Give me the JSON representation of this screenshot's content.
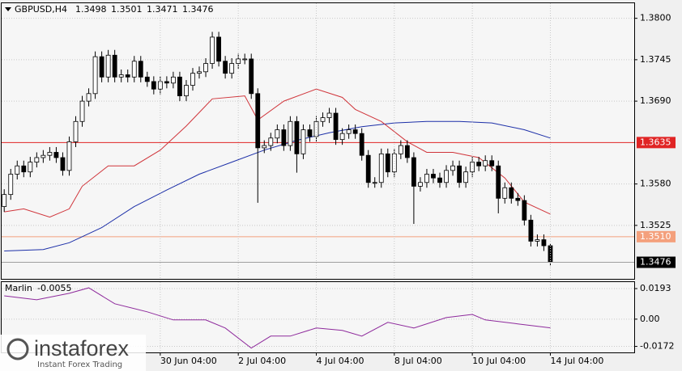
{
  "chart_data": [
    {
      "type": "candlestick",
      "title": "GBPUSD,H4",
      "x": [
        0,
        1,
        2,
        3,
        4,
        5,
        6,
        7,
        8,
        9,
        10,
        11,
        12,
        13,
        14,
        15,
        16,
        17,
        18,
        19,
        20,
        21,
        22,
        23,
        24,
        25,
        26,
        27,
        28,
        29,
        30,
        31,
        32,
        33,
        34,
        35,
        36,
        37,
        38,
        39,
        40,
        41,
        42,
        43,
        44,
        45,
        46,
        47,
        48,
        49,
        50,
        51,
        52,
        53,
        54,
        55,
        56,
        57,
        58,
        59,
        60,
        61,
        62,
        63,
        64,
        65,
        66,
        67,
        68,
        69,
        70,
        71,
        72,
        73,
        74,
        75,
        76,
        77,
        78,
        79,
        80,
        81,
        82,
        83,
        84
      ],
      "open": [
        1.355,
        1.3566,
        1.3593,
        1.3604,
        1.3596,
        1.3609,
        1.3615,
        1.3618,
        1.3622,
        1.3615,
        1.3598,
        1.3636,
        1.3663,
        1.369,
        1.37,
        1.3749,
        1.3722,
        1.3751,
        1.3722,
        1.3725,
        1.3722,
        1.3743,
        1.3722,
        1.3716,
        1.3706,
        1.3716,
        1.3714,
        1.3722,
        1.3697,
        1.3711,
        1.3727,
        1.3729,
        1.374,
        1.3775,
        1.3743,
        1.3727,
        1.374,
        1.3746,
        1.3746,
        1.37,
        1.3628,
        1.3631,
        1.3641,
        1.3652,
        1.3631,
        1.3663,
        1.362,
        1.3652,
        1.3643,
        1.3663,
        1.3668,
        1.3674,
        1.3639,
        1.3647,
        1.3652,
        1.3647,
        1.3618,
        1.3582,
        1.3582,
        1.362,
        1.3596,
        1.362,
        1.3631,
        1.3615,
        1.3577,
        1.3582,
        1.3593,
        1.3588,
        1.3582,
        1.3598,
        1.3604,
        1.3582,
        1.3596,
        1.3609,
        1.3604,
        1.3611,
        1.3604,
        1.3561,
        1.3575,
        1.3561,
        1.3558,
        1.3532,
        1.3504,
        1.3506,
        1.3498
      ],
      "high": [
        1.3573,
        1.36,
        1.3611,
        1.3611,
        1.3616,
        1.3622,
        1.3625,
        1.3629,
        1.3629,
        1.3622,
        1.3643,
        1.367,
        1.3697,
        1.3707,
        1.3756,
        1.3756,
        1.3758,
        1.3758,
        1.3732,
        1.3732,
        1.375,
        1.375,
        1.3729,
        1.3723,
        1.3723,
        1.3723,
        1.3729,
        1.3729,
        1.3718,
        1.3734,
        1.3736,
        1.3747,
        1.3782,
        1.3782,
        1.375,
        1.3747,
        1.3753,
        1.3753,
        1.3753,
        1.3707,
        1.3638,
        1.3648,
        1.3659,
        1.3659,
        1.367,
        1.367,
        1.3659,
        1.3659,
        1.367,
        1.3675,
        1.3681,
        1.3681,
        1.3654,
        1.3659,
        1.3659,
        1.3654,
        1.3625,
        1.3589,
        1.3627,
        1.3627,
        1.3627,
        1.3638,
        1.3638,
        1.3622,
        1.3589,
        1.36,
        1.36,
        1.3595,
        1.3605,
        1.3611,
        1.3611,
        1.3603,
        1.3616,
        1.3616,
        1.3618,
        1.3618,
        1.3611,
        1.3582,
        1.3582,
        1.3568,
        1.3565,
        1.3539,
        1.3513,
        1.3513,
        1.3501
      ],
      "low": [
        1.3543,
        1.3559,
        1.3586,
        1.3589,
        1.3589,
        1.3602,
        1.3608,
        1.3611,
        1.3608,
        1.3591,
        1.3591,
        1.3629,
        1.3656,
        1.3683,
        1.3693,
        1.3715,
        1.3715,
        1.3715,
        1.3715,
        1.3715,
        1.3715,
        1.3715,
        1.3709,
        1.3699,
        1.3699,
        1.3707,
        1.3707,
        1.369,
        1.369,
        1.3704,
        1.372,
        1.3722,
        1.3733,
        1.3736,
        1.372,
        1.372,
        1.3733,
        1.3739,
        1.3693,
        1.3555,
        1.3621,
        1.3624,
        1.3634,
        1.3624,
        1.3624,
        1.3595,
        1.3613,
        1.3636,
        1.3636,
        1.3656,
        1.3661,
        1.3632,
        1.3632,
        1.364,
        1.364,
        1.3611,
        1.3575,
        1.3575,
        1.3575,
        1.3589,
        1.3589,
        1.3613,
        1.3608,
        1.3527,
        1.357,
        1.3575,
        1.3581,
        1.3575,
        1.3575,
        1.3591,
        1.3575,
        1.3575,
        1.3589,
        1.3597,
        1.3597,
        1.3597,
        1.3541,
        1.3554,
        1.3554,
        1.3551,
        1.3525,
        1.3497,
        1.3497,
        1.3491,
        1.3471
      ],
      "close": [
        1.3566,
        1.3593,
        1.3604,
        1.3596,
        1.3609,
        1.3615,
        1.3618,
        1.3622,
        1.3615,
        1.3598,
        1.3636,
        1.3663,
        1.369,
        1.37,
        1.3749,
        1.3722,
        1.3751,
        1.3722,
        1.3725,
        1.3722,
        1.3743,
        1.3722,
        1.3716,
        1.3706,
        1.3716,
        1.3714,
        1.3722,
        1.3697,
        1.3711,
        1.3727,
        1.3729,
        1.374,
        1.3775,
        1.3743,
        1.3727,
        1.374,
        1.3746,
        1.3746,
        1.37,
        1.3628,
        1.3631,
        1.3641,
        1.3652,
        1.3631,
        1.3663,
        1.362,
        1.3652,
        1.3643,
        1.3663,
        1.3668,
        1.3674,
        1.3639,
        1.3647,
        1.3652,
        1.3647,
        1.3618,
        1.3582,
        1.3582,
        1.362,
        1.3596,
        1.362,
        1.3631,
        1.3615,
        1.3577,
        1.3582,
        1.3593,
        1.3588,
        1.3582,
        1.3598,
        1.3604,
        1.3582,
        1.3596,
        1.3609,
        1.3604,
        1.3611,
        1.3604,
        1.3561,
        1.3575,
        1.3561,
        1.3558,
        1.3532,
        1.3504,
        1.3506,
        1.3498,
        1.3476
      ],
      "series": [
        {
          "color": "#1c2fa8",
          "x": [
            0,
            6,
            10,
            15,
            20,
            25,
            30,
            35,
            40,
            45,
            50,
            55,
            60,
            65,
            70,
            75,
            80,
            84
          ],
          "values": [
            1.3491,
            1.3493,
            1.3502,
            1.3522,
            1.355,
            1.3572,
            1.3593,
            1.3609,
            1.3625,
            1.3638,
            1.3648,
            1.3656,
            1.3661,
            1.3663,
            1.3663,
            1.3661,
            1.3652,
            1.3641
          ]
        },
        {
          "color": "#d0343a",
          "x": [
            0,
            3,
            7,
            10,
            12,
            16,
            20,
            24,
            28,
            32,
            37,
            39,
            43,
            48,
            52,
            54,
            58,
            62,
            65,
            69,
            73,
            77,
            80,
            84
          ],
          "values": [
            1.3543,
            1.3547,
            1.3536,
            1.3547,
            1.3577,
            1.3604,
            1.3604,
            1.3625,
            1.3657,
            1.3693,
            1.3697,
            1.3665,
            1.369,
            1.3706,
            1.3695,
            1.3679,
            1.3663,
            1.3636,
            1.3622,
            1.3622,
            1.3615,
            1.3588,
            1.3556,
            1.354
          ]
        }
      ],
      "hlines": [
        {
          "value": 1.3635,
          "color": "#e02424"
        },
        {
          "value": 1.351,
          "label": "1.3510",
          "color": "#f4a07c"
        }
      ],
      "xlim": [
        -0.4,
        96.9
      ],
      "ylim": [
        1.3454,
        1.382
      ],
      "yticks": [
        {
          "value": 1.38,
          "label": "1.3800"
        },
        1.3745,
        {
          "value": 1.369,
          "label": "1.3690"
        },
        {
          "value": 1.358,
          "label": "1.3580"
        },
        1.3525
      ],
      "grid": true
    },
    {
      "type": "line",
      "title": "Marlin",
      "series": [
        {
          "color": "#8e2a9c",
          "x": [
            0,
            5,
            10,
            13,
            17,
            22,
            26,
            31,
            34,
            38,
            41,
            44,
            48,
            52,
            55,
            59,
            63,
            68,
            72,
            74,
            79,
            84
          ],
          "values": [
            0.0147,
            0.0122,
            0.0163,
            0.0198,
            0.0097,
            0.0046,
            -0.0005,
            -0.0005,
            -0.0056,
            -0.0183,
            -0.0107,
            -0.0107,
            -0.0056,
            -0.0071,
            -0.0107,
            -0.002,
            -0.0056,
            0.001,
            0.003,
            -0.0005,
            -0.003,
            -0.0055
          ]
        }
      ],
      "xlim": [
        -0.4,
        96.9
      ],
      "ylim": [
        -0.021,
        0.0234
      ],
      "yticks": [
        0.0193,
        {
          "value": 0,
          "label": "0.00"
        },
        -0.0172
      ],
      "xticks": [
        {
          "value": 24,
          "label": "30 Jun 04:00"
        },
        {
          "value": 36,
          "label": "2 Jul 04:00"
        },
        {
          "value": 48,
          "label": "4 Jul 04:00"
        },
        {
          "value": 60,
          "label": "8 Jul 04:00"
        },
        {
          "value": 72,
          "label": "10 Jul 04:00"
        },
        {
          "value": 84,
          "label": "14 Jul 04:00"
        }
      ],
      "grid": true
    }
  ],
  "logo": {
    "name": "instaforex",
    "tagline": "Instant Forex Trading"
  }
}
